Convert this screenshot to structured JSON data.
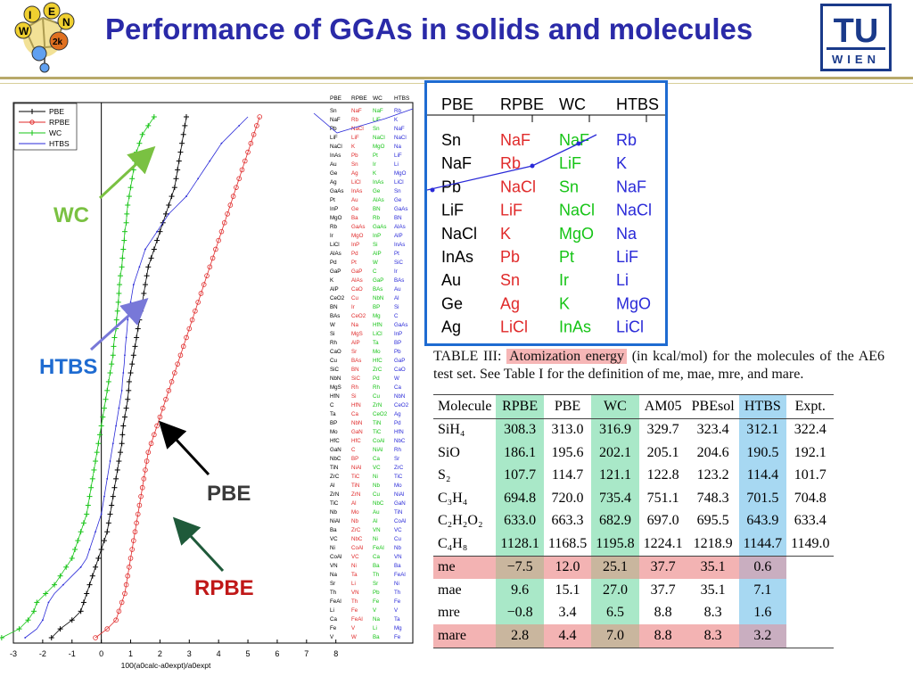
{
  "header": {
    "title": "Performance of GGAs in solids and molecules",
    "logo_left_letters": [
      "W",
      "I",
      "E",
      "N",
      "2k"
    ],
    "logo_right_top": "TU",
    "logo_right_bottom": "WIEN"
  },
  "annotations": {
    "wc": "WC",
    "htbs": "HTBS",
    "pbe": "PBE",
    "rpbe": "RPBE"
  },
  "colors": {
    "title": "#2a2aa8",
    "pbe": "#000000",
    "rpbe": "#e02a2a",
    "wc": "#16c416",
    "htbs": "#2a2ad8",
    "wc_label": "#7ac142",
    "htbs_label": "#1e6bd1",
    "pbe_label": "#3a3a3a",
    "rpbe_label": "#c01818",
    "zoom_border": "#1e6bd1"
  },
  "chart_data": {
    "type": "line",
    "legend": [
      "PBE",
      "RPBE",
      "WC",
      "HTBS"
    ],
    "legend_position": "top-left",
    "xlabel": "100(a0calc-a0expt)/a0expt",
    "xlim": [
      -3,
      8
    ],
    "x_ticks": [
      "-3",
      "-2",
      "-1",
      "0",
      "1",
      "2",
      "3",
      "4",
      "5",
      "6",
      "7",
      "8"
    ],
    "column_headers": [
      "PBE",
      "RPBE",
      "WC",
      "HTBS"
    ],
    "ranking": {
      "PBE": [
        "Sn",
        "NaF",
        "Pb",
        "LiF",
        "NaCl",
        "InAs",
        "Au",
        "Ge",
        "Ag",
        "GaAs",
        "Pt",
        "InP",
        "MgO",
        "Rb",
        "Ir",
        "LiCl",
        "AlAs",
        "Pd",
        "GaP",
        "K",
        "AlP",
        "CeO2",
        "BN",
        "BAs",
        "W",
        "Si",
        "Rh",
        "CaO",
        "Cu",
        "SiC",
        "NbN",
        "MgS",
        "HfN",
        "C",
        "Ta",
        "BP",
        "Mo",
        "HfC",
        "GaN",
        "NbC",
        "TiN",
        "ZrC",
        "Al",
        "ZrN",
        "TiC",
        "Nb",
        "NiAl",
        "Ba",
        "VC",
        "Ni",
        "CoAl",
        "VN",
        "Na",
        "Sr",
        "Th",
        "FeAl",
        "Li",
        "Ca",
        "Fe",
        "V"
      ],
      "RPBE": [
        "NaF",
        "Rb",
        "NaCl",
        "LiF",
        "K",
        "Pb",
        "Sn",
        "Ag",
        "LiCl",
        "InAs",
        "Au",
        "Ge",
        "Ba",
        "GaAs",
        "MgO",
        "InP",
        "Pd",
        "Pt",
        "GaP",
        "AlAs",
        "CaO",
        "Cu",
        "Ir",
        "CeO2",
        "Na",
        "MgS",
        "AlP",
        "Sr",
        "BAs",
        "BN",
        "SiC",
        "Rh",
        "Si",
        "HfN",
        "Ca",
        "NbN",
        "GaN",
        "HfC",
        "C",
        "BP",
        "NiAl",
        "TiC",
        "TiN",
        "ZrN",
        "Al",
        "Mo",
        "Nb",
        "ZrC",
        "NbC",
        "CoAl",
        "VC",
        "Ni",
        "Ta",
        "Li",
        "VN",
        "Th",
        "Fe",
        "FeAl",
        "V",
        "W"
      ],
      "WC": [
        "NaF",
        "LiF",
        "Sn",
        "NaCl",
        "MgO",
        "Pt",
        "Ir",
        "K",
        "InAs",
        "Ge",
        "AlAs",
        "BN",
        "Rb",
        "GaAs",
        "InP",
        "Si",
        "AlP",
        "W",
        "C",
        "GaP",
        "BAs",
        "NbN",
        "BP",
        "Mg",
        "HfN",
        "LiCl",
        "Ta",
        "Mo",
        "HfC",
        "ZrC",
        "Pd",
        "Rh",
        "Cu",
        "ZrN",
        "CeO2",
        "TiN",
        "TiC",
        "CoAl",
        "NiAl",
        "Ca",
        "VC",
        "Ni",
        "Nb",
        "Cu",
        "NbC",
        "Au",
        "Al",
        "VN",
        "Ni",
        "FeAl",
        "Ca",
        "Ba",
        "Th",
        "Sr",
        "Pb",
        "Fe",
        "V",
        "Na",
        "Li",
        "Ba"
      ],
      "HTBS": [
        "Rb",
        "K",
        "NaF",
        "NaCl",
        "Na",
        "LiF",
        "Li",
        "MgO",
        "LiCl",
        "Sn",
        "Ge",
        "GaAs",
        "BN",
        "AlAs",
        "AlP",
        "InAs",
        "Pt",
        "SiC",
        "Ir",
        "BAs",
        "Au",
        "Al",
        "Si",
        "C",
        "GaAs",
        "InP",
        "BP",
        "Pb",
        "GaP",
        "CaO",
        "W",
        "Ca",
        "NbN",
        "CeO2",
        "Ag",
        "Pd",
        "HfN",
        "NbC",
        "Rh",
        "Sr",
        "ZrC",
        "TiC",
        "Mo",
        "NiAl",
        "GaN",
        "TiN",
        "CoAl",
        "VC",
        "Cu",
        "Nb",
        "VN",
        "Ba",
        "FeAl",
        "Ni",
        "Th",
        "Fe",
        "V",
        "Ta",
        "Mg",
        "Fe"
      ]
    },
    "series": [
      {
        "name": "PBE",
        "values": [
          -1.7,
          -1.4,
          -1.0,
          -0.7,
          -0.6,
          -0.5,
          -0.4,
          -0.3,
          -0.2,
          -0.1,
          0.0,
          0.1,
          0.2,
          0.25,
          0.3,
          0.35,
          0.4,
          0.45,
          0.5,
          0.55,
          0.6,
          0.65,
          0.7,
          0.72,
          0.75,
          0.8,
          0.85,
          0.9,
          0.93,
          0.95,
          1.0,
          1.05,
          1.1,
          1.15,
          1.2,
          1.25,
          1.3,
          1.35,
          1.4,
          1.45,
          1.5,
          1.55,
          1.6,
          1.7,
          1.8,
          1.9,
          2.0,
          2.1,
          2.2,
          2.3,
          2.4,
          2.5,
          2.55,
          2.6,
          2.65,
          2.7,
          2.75,
          2.8,
          2.85,
          2.9
        ]
      },
      {
        "name": "RPBE",
        "values": [
          -0.2,
          0.2,
          0.5,
          0.6,
          0.7,
          0.8,
          0.85,
          0.9,
          0.95,
          1.0,
          1.05,
          1.1,
          1.15,
          1.2,
          1.25,
          1.3,
          1.35,
          1.4,
          1.45,
          1.5,
          1.55,
          1.6,
          1.7,
          1.8,
          1.9,
          2.0,
          2.1,
          2.2,
          2.3,
          2.4,
          2.5,
          2.6,
          2.7,
          2.8,
          2.9,
          3.0,
          3.1,
          3.2,
          3.3,
          3.4,
          3.5,
          3.6,
          3.7,
          3.8,
          3.9,
          4.0,
          4.1,
          4.2,
          4.3,
          4.4,
          4.5,
          4.6,
          4.7,
          4.8,
          4.9,
          5.0,
          5.1,
          5.2,
          5.3,
          5.4
        ]
      },
      {
        "name": "WC",
        "values": [
          -3.4,
          -2.8,
          -2.5,
          -2.3,
          -2.2,
          -1.9,
          -1.6,
          -1.4,
          -1.2,
          -1.0,
          -0.9,
          -0.8,
          -0.7,
          -0.6,
          -0.5,
          -0.45,
          -0.4,
          -0.35,
          -0.3,
          -0.25,
          -0.2,
          -0.15,
          -0.1,
          -0.05,
          0.0,
          0.05,
          0.1,
          0.15,
          0.2,
          0.25,
          0.3,
          0.35,
          0.4,
          0.42,
          0.45,
          0.5,
          0.52,
          0.55,
          0.58,
          0.6,
          0.62,
          0.65,
          0.7,
          0.72,
          0.75,
          0.78,
          0.8,
          0.85,
          0.87,
          0.9,
          0.95,
          1.0,
          1.05,
          1.1,
          1.15,
          1.2,
          1.3,
          1.4,
          1.6,
          1.8
        ]
      },
      {
        "name": "HTBS",
        "values": [
          -2.6,
          -2.2,
          -2.0,
          -1.9,
          -1.8,
          -1.6,
          -1.3,
          -1.0,
          -0.7,
          -0.5,
          -0.4,
          -0.3,
          -0.2,
          -0.1,
          0.0,
          0.05,
          0.1,
          0.15,
          0.2,
          0.25,
          0.3,
          0.35,
          0.4,
          0.45,
          0.5,
          0.55,
          0.6,
          0.65,
          0.7,
          0.72,
          0.75,
          0.78,
          0.8,
          0.82,
          0.85,
          0.88,
          0.9,
          0.95,
          1.0,
          1.05,
          1.1,
          1.2,
          1.3,
          1.4,
          1.5,
          1.7,
          1.9,
          2.1,
          2.3,
          2.6,
          2.9,
          3.1,
          3.3,
          3.5,
          3.7,
          3.9,
          4.1,
          4.4,
          4.7,
          5.0
        ]
      }
    ]
  },
  "zoom": {
    "headers": [
      "PBE",
      "RPBE",
      "WC",
      "HTBS"
    ],
    "rows": [
      [
        "Sn",
        "NaF",
        "NaF",
        "Rb"
      ],
      [
        "NaF",
        "Rb",
        "LiF",
        "K"
      ],
      [
        "Pb",
        "NaCl",
        "Sn",
        "NaF"
      ],
      [
        "LiF",
        "LiF",
        "NaCl",
        "NaCl"
      ],
      [
        "NaCl",
        "K",
        "MgO",
        "Na"
      ],
      [
        "InAs",
        "Pb",
        "Pt",
        "LiF"
      ],
      [
        "Au",
        "Sn",
        "Ir",
        "Li"
      ],
      [
        "Ge",
        "Ag",
        "K",
        "MgO"
      ],
      [
        "Ag",
        "LiCl",
        "InAs",
        "LiCl"
      ]
    ]
  },
  "table": {
    "caption_prefix": "TABLE III:",
    "caption_highlight": "Atomization energy",
    "caption_rest": "(in kcal/mol) for the molecules of the AE6 test set. See Table I for the definition of me, mae, mre, and mare.",
    "headers": [
      "Molecule",
      "RPBE",
      "PBE",
      "WC",
      "AM05",
      "PBEsol",
      "HTBS",
      "Expt."
    ],
    "rows": [
      {
        "label": "SiH4",
        "cells": [
          "308.3",
          "313.0",
          "316.9",
          "329.7",
          "323.4",
          "312.1",
          "322.4"
        ]
      },
      {
        "label": "SiO",
        "cells": [
          "186.1",
          "195.6",
          "202.1",
          "205.1",
          "204.6",
          "190.5",
          "192.1"
        ]
      },
      {
        "label": "S2",
        "cells": [
          "107.7",
          "114.7",
          "121.1",
          "122.8",
          "123.2",
          "114.4",
          "101.7"
        ]
      },
      {
        "label": "C3H4",
        "cells": [
          "694.8",
          "720.0",
          "735.4",
          "751.1",
          "748.3",
          "701.5",
          "704.8"
        ]
      },
      {
        "label": "C2H2O2",
        "cells": [
          "633.0",
          "663.3",
          "682.9",
          "697.0",
          "695.5",
          "643.9",
          "633.4"
        ]
      },
      {
        "label": "C4H8",
        "cells": [
          "1128.1",
          "1168.5",
          "1195.8",
          "1224.1",
          "1218.9",
          "1144.7",
          "1149.0"
        ]
      },
      {
        "label": "me",
        "cells": [
          "−7.5",
          "12.0",
          "25.1",
          "37.7",
          "35.1",
          "0.6",
          ""
        ]
      },
      {
        "label": "mae",
        "cells": [
          "9.6",
          "15.1",
          "27.0",
          "37.7",
          "35.1",
          "7.1",
          ""
        ]
      },
      {
        "label": "mre",
        "cells": [
          "−0.8",
          "3.4",
          "6.5",
          "8.8",
          "8.3",
          "1.6",
          ""
        ]
      },
      {
        "label": "mare",
        "cells": [
          "2.8",
          "4.4",
          "7.0",
          "8.8",
          "8.3",
          "3.2",
          ""
        ]
      }
    ]
  }
}
